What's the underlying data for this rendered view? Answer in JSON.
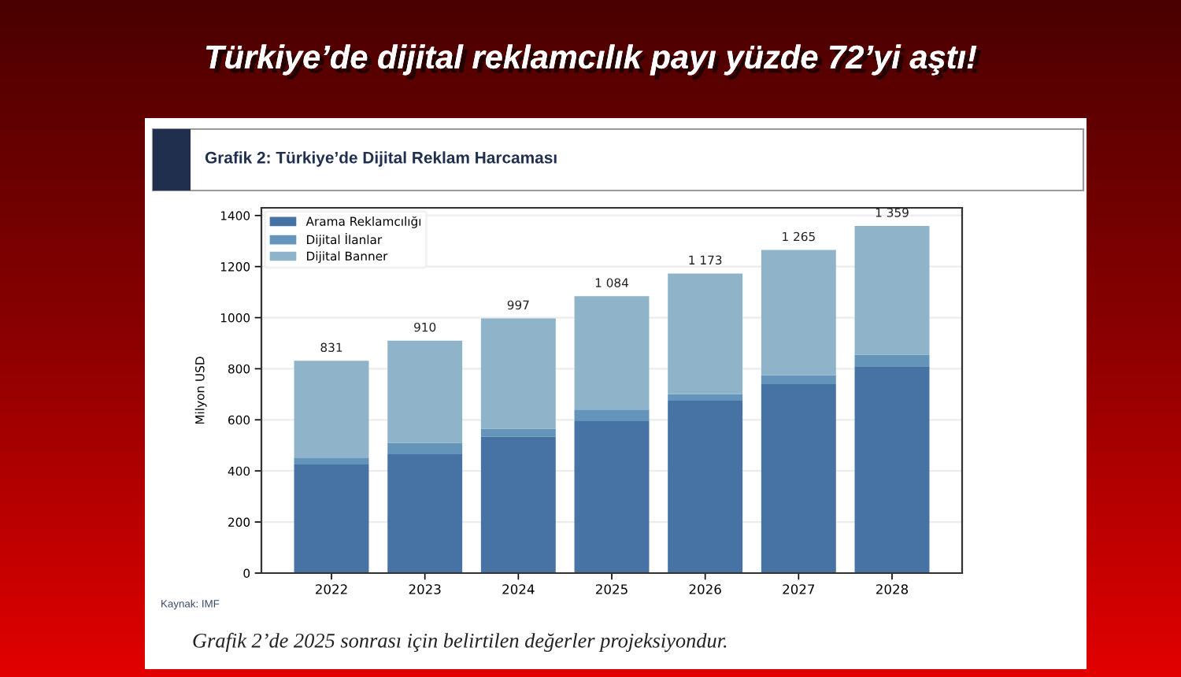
{
  "chart_data": {
    "type": "bar",
    "title": "Türkiye’de dijital reklamcılık payı yüzde 72’yi aştı!",
    "subtitle": "Grafik 2: Türkiye’de Dijital Reklam Harcaması",
    "ylabel": "Milyon USD",
    "categories": [
      "2022",
      "2023",
      "2024",
      "2025",
      "2026",
      "2027",
      "2028"
    ],
    "stacked": true,
    "series": [
      {
        "name": "Arama Reklamcılığı",
        "color": "#4673a4",
        "values": [
          425,
          465,
          535,
          595,
          675,
          740,
          810
        ]
      },
      {
        "name": "Dijital İlanlar",
        "color": "#6594ba",
        "values": [
          27,
          45,
          30,
          45,
          25,
          35,
          45
        ]
      },
      {
        "name": "Dijital Banner",
        "color": "#8fb4ca",
        "values": [
          379,
          400,
          432,
          444,
          473,
          490,
          504
        ]
      }
    ],
    "totals": [
      "831",
      "910",
      "997",
      "1 084",
      "1 173",
      "1 265",
      "1 359"
    ],
    "ylim": [
      0,
      1430
    ],
    "yticks": [
      0,
      200,
      400,
      600,
      800,
      1000,
      1200,
      1400
    ],
    "grid": "y",
    "legend": "top left",
    "annotations": [
      "Kaynak: IMF",
      "Grafik 2’de 2025 sonrası için belirtilen değerler projeksiyondur."
    ]
  }
}
